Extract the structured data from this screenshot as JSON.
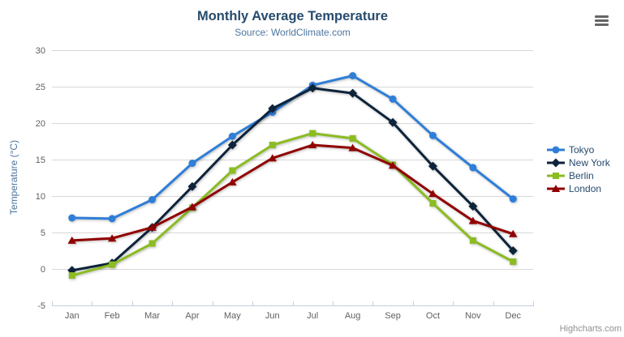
{
  "chart_data": {
    "type": "line",
    "title": "Monthly Average Temperature",
    "subtitle": "Source: WorldClimate.com",
    "xlabel": "",
    "ylabel": "Temperature (°C)",
    "ylim": [
      -5,
      30
    ],
    "y_ticks": [
      30,
      25,
      20,
      15,
      10,
      5,
      0,
      -5
    ],
    "grid": true,
    "legend_position": "right",
    "categories": [
      "Jan",
      "Feb",
      "Mar",
      "Apr",
      "May",
      "Jun",
      "Jul",
      "Aug",
      "Sep",
      "Oct",
      "Nov",
      "Dec"
    ],
    "series": [
      {
        "name": "Tokyo",
        "color": "#2f7ed8",
        "marker": "circle",
        "values": [
          7.0,
          6.9,
          9.5,
          14.5,
          18.2,
          21.5,
          25.2,
          26.5,
          23.3,
          18.3,
          13.9,
          9.6
        ]
      },
      {
        "name": "New York",
        "color": "#0d233a",
        "marker": "diamond",
        "values": [
          -0.2,
          0.8,
          5.7,
          11.3,
          17.0,
          22.0,
          24.8,
          24.1,
          20.1,
          14.1,
          8.6,
          2.5
        ]
      },
      {
        "name": "Berlin",
        "color": "#8bbc21",
        "marker": "square",
        "values": [
          -0.9,
          0.6,
          3.5,
          8.4,
          13.5,
          17.0,
          18.6,
          17.9,
          14.3,
          9.0,
          3.9,
          1.0
        ]
      },
      {
        "name": "London",
        "color": "#910000",
        "marker": "triangle",
        "values": [
          3.9,
          4.2,
          5.7,
          8.5,
          11.9,
          15.2,
          17.0,
          16.6,
          14.2,
          10.3,
          6.6,
          4.8
        ]
      }
    ],
    "axis_colors": {
      "grid_line": "#d8d8d8",
      "axis_line": "#c0d0e0",
      "label_text": "#606060"
    }
  },
  "icons": {
    "export_menu": "hamburger-icon"
  },
  "credits": "Highcharts.com"
}
